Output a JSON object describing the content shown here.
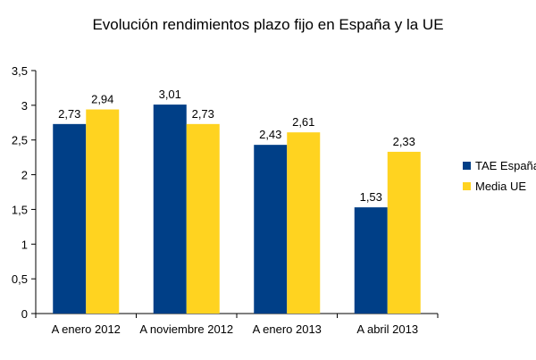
{
  "chart_data": {
    "type": "bar",
    "title": "Evolución rendimientos plazo fijo en España y la UE",
    "xlabel": "",
    "ylabel": "",
    "ylim": [
      0,
      3.5
    ],
    "yticks": [
      "0",
      "0,5",
      "1",
      "1,5",
      "2",
      "2,5",
      "3",
      "3,5"
    ],
    "ytick_values": [
      0,
      0.5,
      1,
      1.5,
      2,
      2.5,
      3,
      3.5
    ],
    "categories": [
      "A enero 2012",
      "A noviembre 2012",
      "A enero 2013",
      "A abril 2013"
    ],
    "series": [
      {
        "name": "TAE España",
        "values": [
          2.73,
          3.01,
          2.43,
          1.53
        ],
        "labels": [
          "2,73",
          "3,01",
          "2,43",
          "1,53"
        ],
        "color": "#003f87"
      },
      {
        "name": "Media UE",
        "values": [
          2.94,
          2.73,
          2.61,
          2.33
        ],
        "labels": [
          "2,94",
          "2,73",
          "2,61",
          "2,33"
        ],
        "color": "#ffd320"
      }
    ],
    "grid": false,
    "legend_position": "right"
  }
}
